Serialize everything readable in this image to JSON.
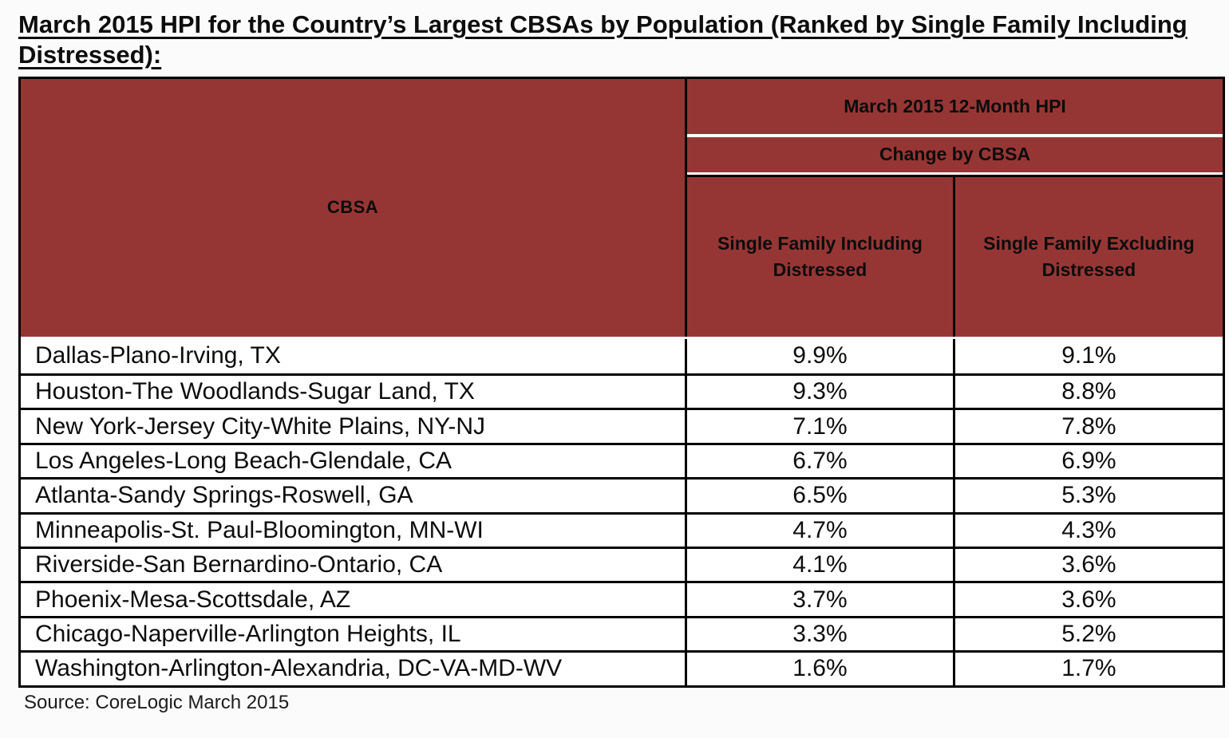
{
  "title": {
    "line1": "March 2015 HPI for the Country’s Largest CBSAs by Population (Ranked by Single Family Including",
    "line2": "Distressed):"
  },
  "table": {
    "header": {
      "cbsa_label": "CBSA",
      "group_label": "March 2015 12-Month HPI",
      "subgroup_label": "Change by CBSA",
      "col_including": "Single Family Including Distressed",
      "col_excluding": "Single Family Excluding Distressed"
    },
    "rows": [
      {
        "cbsa": "Dallas-Plano-Irving, TX",
        "including": "9.9%",
        "excluding": "9.1%"
      },
      {
        "cbsa": "Houston-The Woodlands-Sugar Land, TX",
        "including": "9.3%",
        "excluding": "8.8%"
      },
      {
        "cbsa": "New York-Jersey City-White Plains, NY-NJ",
        "including": "7.1%",
        "excluding": "7.8%"
      },
      {
        "cbsa": "Los Angeles-Long Beach-Glendale, CA",
        "including": "6.7%",
        "excluding": "6.9%"
      },
      {
        "cbsa": "Atlanta-Sandy Springs-Roswell, GA",
        "including": "6.5%",
        "excluding": "5.3%"
      },
      {
        "cbsa": "Minneapolis-St. Paul-Bloomington, MN-WI",
        "including": "4.7%",
        "excluding": "4.3%"
      },
      {
        "cbsa": "Riverside-San Bernardino-Ontario, CA",
        "including": "4.1%",
        "excluding": "3.6%"
      },
      {
        "cbsa": "Phoenix-Mesa-Scottsdale, AZ",
        "including": "3.7%",
        "excluding": "3.6%"
      },
      {
        "cbsa": "Chicago-Naperville-Arlington Heights, IL",
        "including": "3.3%",
        "excluding": "5.2%"
      },
      {
        "cbsa": "Washington-Arlington-Alexandria, DC-VA-MD-WV",
        "including": "1.6%",
        "excluding": "1.7%"
      }
    ]
  },
  "source": "Source: CoreLogic March 2015",
  "colors": {
    "header_bg": "#963634",
    "border": "#000000",
    "page_bg": "#fbfbfb",
    "header_text": "#0c0c0c"
  },
  "chart_data": {
    "type": "table",
    "title": "March 2015 HPI for the Country’s Largest CBSAs by Population (Ranked by Single Family Including Distressed)",
    "categories": [
      "Dallas-Plano-Irving, TX",
      "Houston-The Woodlands-Sugar Land, TX",
      "New York-Jersey City-White Plains, NY-NJ",
      "Los Angeles-Long Beach-Glendale, CA",
      "Atlanta-Sandy Springs-Roswell, GA",
      "Minneapolis-St. Paul-Bloomington, MN-WI",
      "Riverside-San Bernardino-Ontario, CA",
      "Phoenix-Mesa-Scottsdale, AZ",
      "Chicago-Naperville-Arlington Heights, IL",
      "Washington-Arlington-Alexandria, DC-VA-MD-WV"
    ],
    "series": [
      {
        "name": "Single Family Including Distressed",
        "values": [
          9.9,
          9.3,
          7.1,
          6.7,
          6.5,
          4.7,
          4.1,
          3.7,
          3.3,
          1.6
        ]
      },
      {
        "name": "Single Family Excluding Distressed",
        "values": [
          9.1,
          8.8,
          7.8,
          6.9,
          5.3,
          4.3,
          3.6,
          3.6,
          5.2,
          1.7
        ]
      }
    ]
  }
}
